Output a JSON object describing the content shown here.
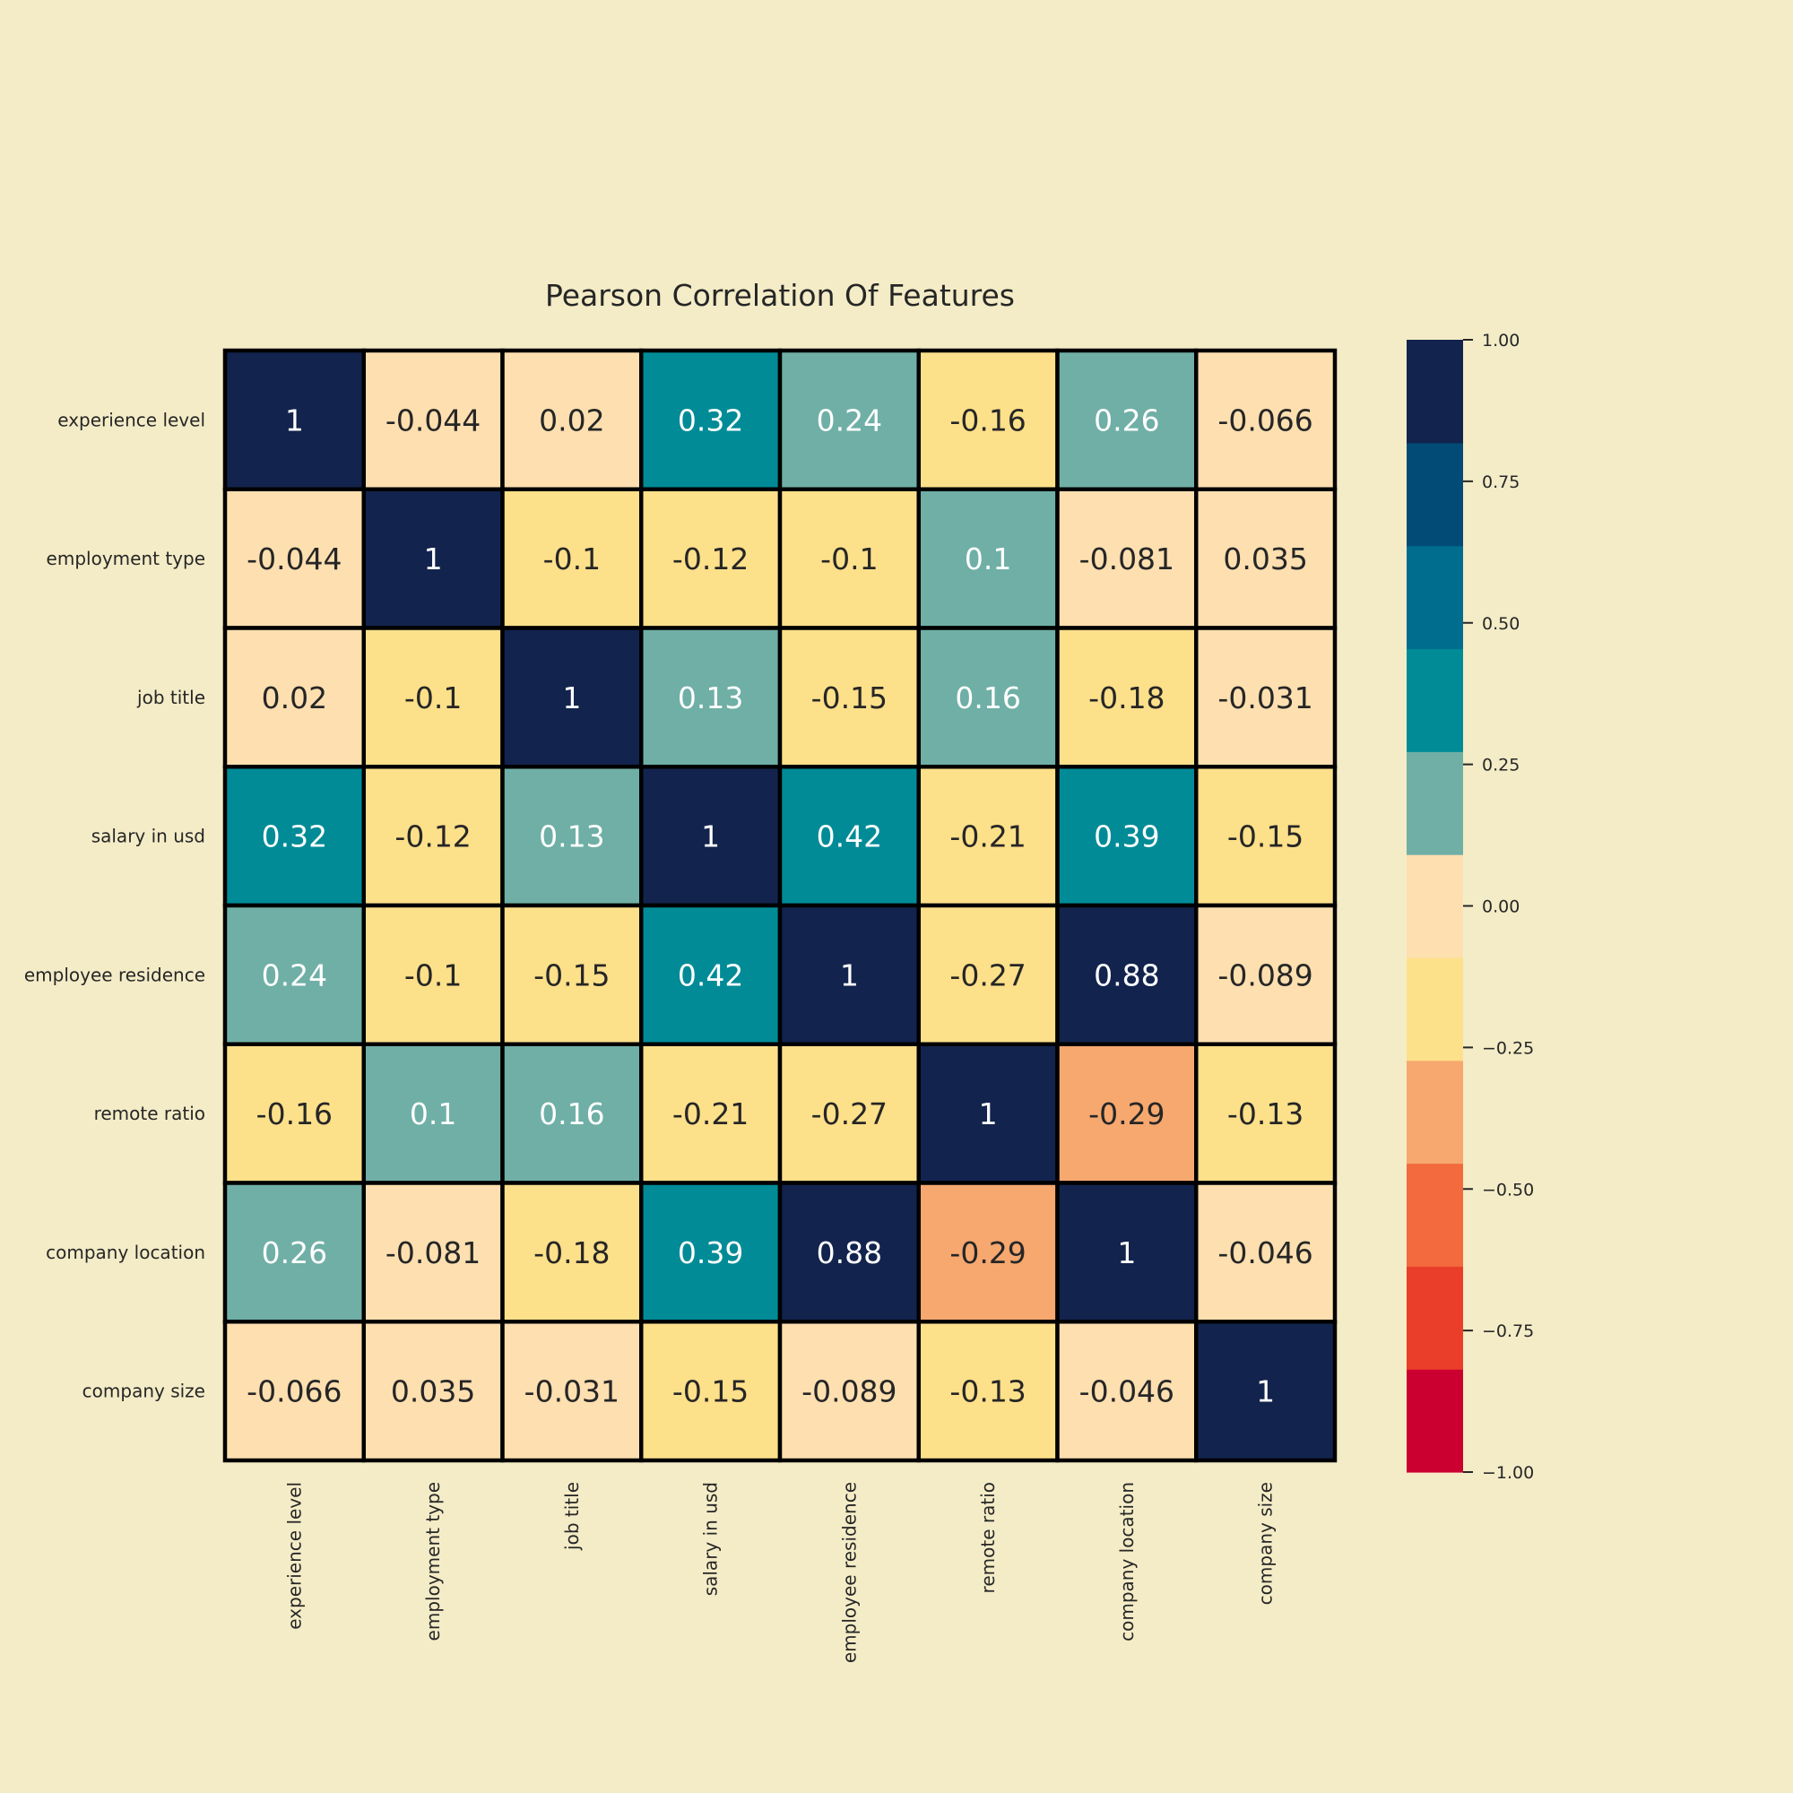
{
  "background_color": "#f4ecc7",
  "chart_data": {
    "type": "heatmap",
    "title": "Pearson Correlation Of Features",
    "row_labels": [
      "experience level",
      "employment type",
      "job title",
      "salary in usd",
      "employee residence",
      "remote ratio",
      "company location",
      "company size"
    ],
    "col_labels": [
      "experience level",
      "employment type",
      "job title",
      "salary in usd",
      "employee residence",
      "remote ratio",
      "company location",
      "company size"
    ],
    "values": [
      [
        1,
        -0.044,
        0.02,
        0.32,
        0.24,
        -0.16,
        0.26,
        -0.066
      ],
      [
        -0.044,
        1,
        -0.1,
        -0.12,
        -0.1,
        0.1,
        -0.081,
        0.035
      ],
      [
        0.02,
        -0.1,
        1,
        0.13,
        -0.15,
        0.16,
        -0.18,
        -0.031
      ],
      [
        0.32,
        -0.12,
        0.13,
        1,
        0.42,
        -0.21,
        0.39,
        -0.15
      ],
      [
        0.24,
        -0.1,
        -0.15,
        0.42,
        1,
        -0.27,
        0.88,
        -0.089
      ],
      [
        -0.16,
        0.1,
        0.16,
        -0.21,
        -0.27,
        1,
        -0.29,
        -0.13
      ],
      [
        0.26,
        -0.081,
        -0.18,
        0.39,
        0.88,
        -0.29,
        1,
        -0.046
      ],
      [
        -0.066,
        0.035,
        -0.031,
        -0.15,
        -0.089,
        -0.13,
        -0.046,
        1
      ]
    ],
    "value_labels": [
      [
        "1",
        "-0.044",
        "0.02",
        "0.32",
        "0.24",
        "-0.16",
        "0.26",
        "-0.066"
      ],
      [
        "-0.044",
        "1",
        "-0.1",
        "-0.12",
        "-0.1",
        "0.1",
        "-0.081",
        "0.035"
      ],
      [
        "0.02",
        "-0.1",
        "1",
        "0.13",
        "-0.15",
        "0.16",
        "-0.18",
        "-0.031"
      ],
      [
        "0.32",
        "-0.12",
        "0.13",
        "1",
        "0.42",
        "-0.21",
        "0.39",
        "-0.15"
      ],
      [
        "0.24",
        "-0.1",
        "-0.15",
        "0.42",
        "1",
        "-0.27",
        "0.88",
        "-0.089"
      ],
      [
        "-0.16",
        "0.1",
        "0.16",
        "-0.21",
        "-0.27",
        "1",
        "-0.29",
        "-0.13"
      ],
      [
        "0.26",
        "-0.081",
        "-0.18",
        "0.39",
        "0.88",
        "-0.29",
        "1",
        "-0.046"
      ],
      [
        "-0.066",
        "0.035",
        "-0.031",
        "-0.15",
        "-0.089",
        "-0.13",
        "-0.046",
        "1"
      ]
    ],
    "colorbar": {
      "vmin": -1.0,
      "vmax": 1.0,
      "ticks": [
        1.0,
        0.75,
        0.5,
        0.25,
        0.0,
        -0.25,
        -0.5,
        -0.75,
        -1.0
      ],
      "tick_labels": [
        "1.00",
        "0.75",
        "0.50",
        "0.25",
        "0.00",
        "−0.25",
        "−0.50",
        "−0.75",
        "−1.00"
      ],
      "colors": [
        "#cc0030",
        "#ea3e2a",
        "#f26a3d",
        "#f6a86f",
        "#fde08a",
        "#fddfb0",
        "#6fafa6",
        "#008b97",
        "#006d8f",
        "#024b77",
        "#12234d"
      ]
    },
    "text_colors": {
      "dark_cells": "#ffffff",
      "light_cells": "#262626"
    },
    "grid_line_color": "#000000",
    "legend_position": "right"
  }
}
